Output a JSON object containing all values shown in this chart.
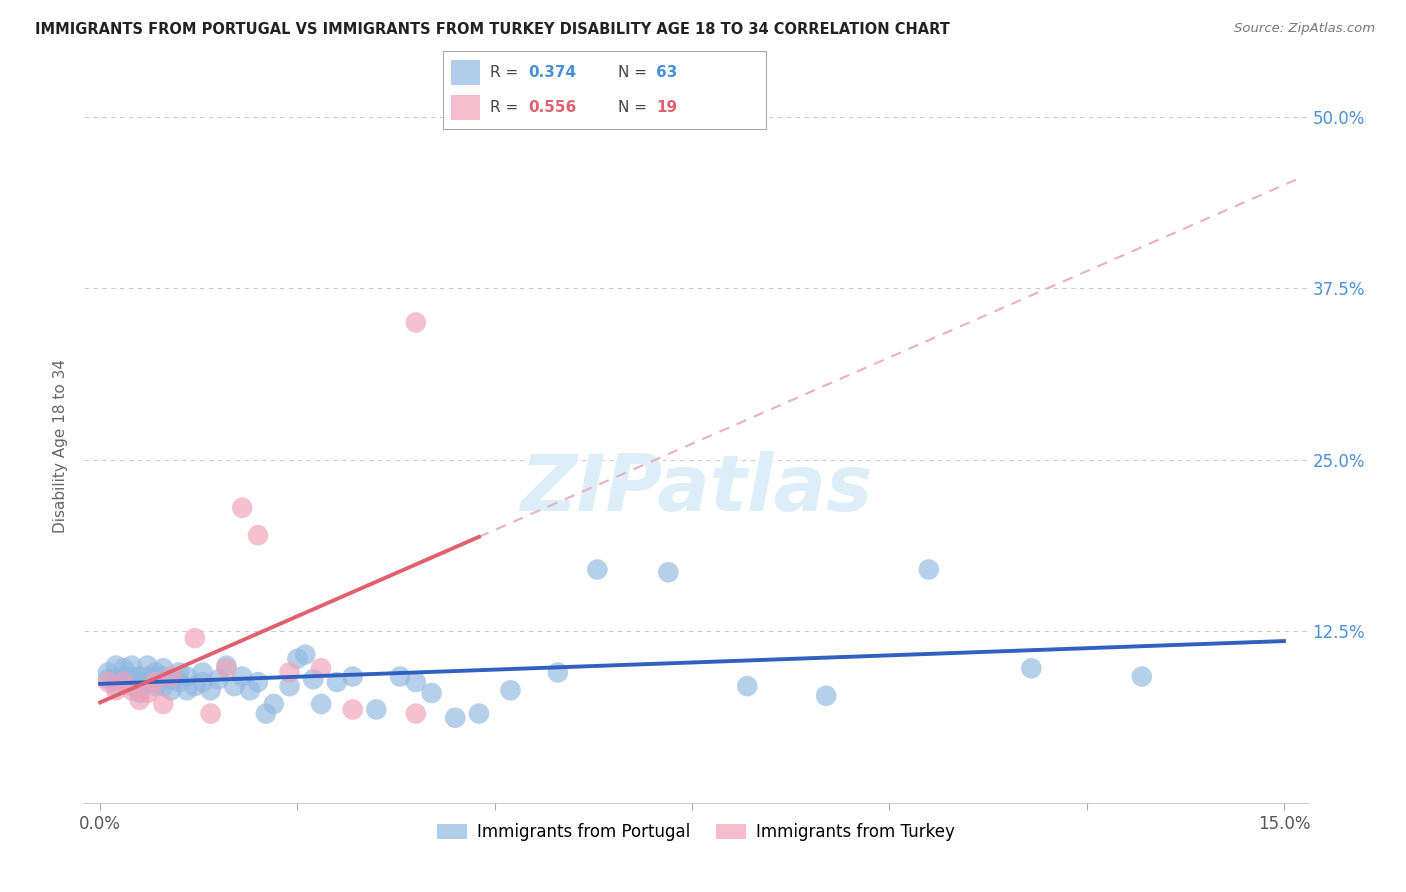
{
  "title": "IMMIGRANTS FROM PORTUGAL VS IMMIGRANTS FROM TURKEY DISABILITY AGE 18 TO 34 CORRELATION CHART",
  "source": "Source: ZipAtlas.com",
  "ylabel": "Disability Age 18 to 34",
  "xlim": [
    0.0,
    0.15
  ],
  "ylim": [
    0.0,
    0.52
  ],
  "portugal_color": "#90b8e0",
  "turkey_color": "#f0a0b8",
  "portugal_line_color": "#3060c0",
  "turkey_line_color": "#e06070",
  "turkey_dashed_color": "#e8b0c0",
  "watermark_color": "#ddeef8",
  "background_color": "#ffffff",
  "grid_color": "#cccccc",
  "ytick_color": "#4a90d9",
  "xtick_color": "#555555",
  "portugal_R": "0.374",
  "portugal_N": "63",
  "turkey_R": "0.556",
  "turkey_N": "19",
  "portugal_scatter_x": [
    0.001,
    0.001,
    0.002,
    0.002,
    0.002,
    0.003,
    0.003,
    0.003,
    0.004,
    0.004,
    0.004,
    0.005,
    0.005,
    0.005,
    0.006,
    0.006,
    0.006,
    0.007,
    0.007,
    0.007,
    0.008,
    0.008,
    0.008,
    0.009,
    0.009,
    0.01,
    0.01,
    0.011,
    0.011,
    0.012,
    0.013,
    0.013,
    0.014,
    0.015,
    0.016,
    0.017,
    0.018,
    0.019,
    0.02,
    0.021,
    0.022,
    0.024,
    0.025,
    0.026,
    0.027,
    0.028,
    0.03,
    0.032,
    0.035,
    0.038,
    0.04,
    0.042,
    0.045,
    0.048,
    0.052,
    0.058,
    0.063,
    0.072,
    0.082,
    0.092,
    0.105,
    0.118,
    0.132
  ],
  "portugal_scatter_y": [
    0.09,
    0.095,
    0.085,
    0.09,
    0.1,
    0.088,
    0.092,
    0.098,
    0.085,
    0.092,
    0.1,
    0.088,
    0.092,
    0.08,
    0.088,
    0.092,
    0.1,
    0.085,
    0.092,
    0.095,
    0.085,
    0.092,
    0.098,
    0.082,
    0.09,
    0.088,
    0.095,
    0.082,
    0.092,
    0.085,
    0.088,
    0.095,
    0.082,
    0.09,
    0.1,
    0.085,
    0.092,
    0.082,
    0.088,
    0.065,
    0.072,
    0.085,
    0.105,
    0.108,
    0.09,
    0.072,
    0.088,
    0.092,
    0.068,
    0.092,
    0.088,
    0.08,
    0.062,
    0.065,
    0.082,
    0.095,
    0.17,
    0.168,
    0.085,
    0.078,
    0.17,
    0.098,
    0.092
  ],
  "turkey_scatter_x": [
    0.001,
    0.002,
    0.003,
    0.004,
    0.005,
    0.006,
    0.007,
    0.008,
    0.009,
    0.012,
    0.014,
    0.016,
    0.018,
    0.02,
    0.024,
    0.028,
    0.032,
    0.04,
    0.04
  ],
  "turkey_scatter_y": [
    0.088,
    0.082,
    0.088,
    0.082,
    0.075,
    0.08,
    0.088,
    0.072,
    0.092,
    0.12,
    0.065,
    0.098,
    0.215,
    0.195,
    0.095,
    0.098,
    0.068,
    0.065,
    0.35
  ]
}
